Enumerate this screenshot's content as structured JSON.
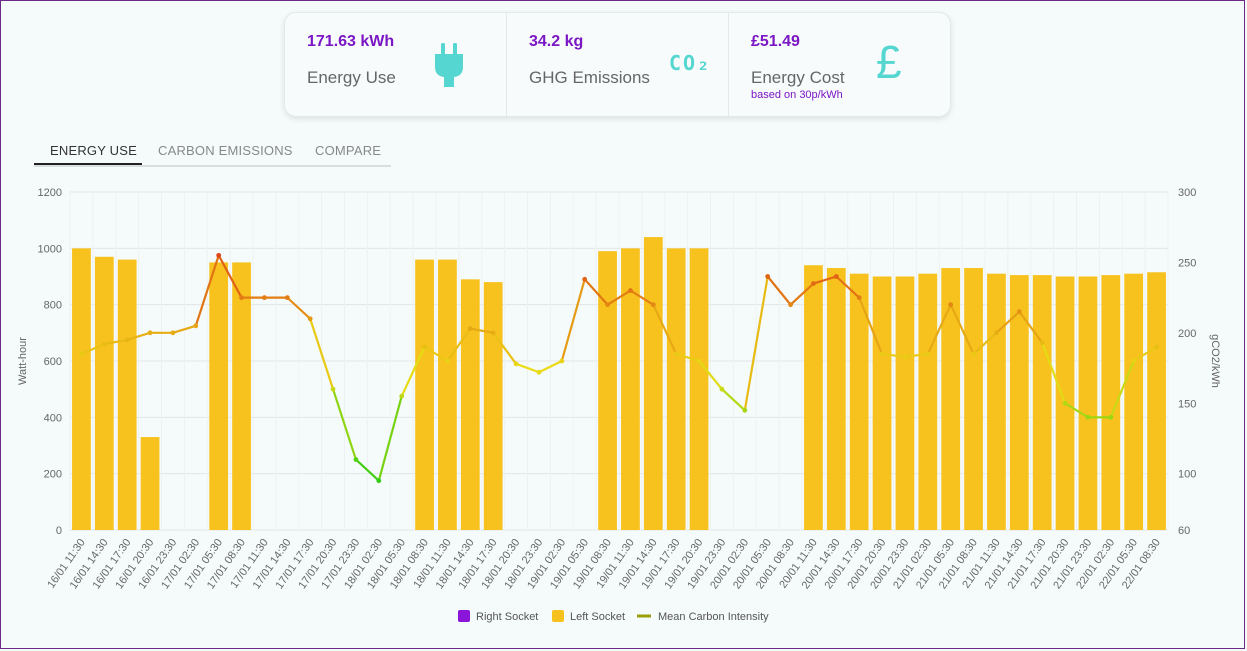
{
  "stats": {
    "energy": {
      "value": "171.63 kWh",
      "label": "Energy Use",
      "icon": "plug-icon"
    },
    "ghg": {
      "value": "34.2 kg",
      "label": "GHG Emissions",
      "icon": "co2-icon",
      "icon_text": "CO₂"
    },
    "cost": {
      "value": "£51.49",
      "label": "Energy Cost",
      "note": "based on 30p/kWh",
      "icon": "pound-icon",
      "icon_text": "£"
    }
  },
  "tabs": [
    "ENERGY USE",
    "CARBON EMISSIONS",
    "COMPARE"
  ],
  "colors": {
    "accent": "#7b16c4",
    "icon": "#56d6d0",
    "bar": "#f8c21e",
    "right_socket": "#8a14d8"
  },
  "chart_data": {
    "type": "bar",
    "ylabel": "Watt-hour",
    "y2label": "gCO2/kWh",
    "ylim": [
      0,
      1200
    ],
    "y2lim": [
      60,
      300
    ],
    "yticks": [
      0,
      200,
      400,
      600,
      800,
      1000,
      1200
    ],
    "y2ticks": [
      60,
      100,
      150,
      200,
      250,
      300
    ],
    "x": [
      "16/01 11:30",
      "16/01 14:30",
      "16/01 17:30",
      "16/01 20:30",
      "16/01 23:30",
      "17/01 02:30",
      "17/01 05:30",
      "17/01 08:30",
      "17/01 11:30",
      "17/01 14:30",
      "17/01 17:30",
      "17/01 20:30",
      "17/01 23:30",
      "18/01 02:30",
      "18/01 05:30",
      "18/01 08:30",
      "18/01 11:30",
      "18/01 14:30",
      "18/01 17:30",
      "18/01 20:30",
      "18/01 23:30",
      "19/01 02:30",
      "19/01 05:30",
      "19/01 08:30",
      "19/01 11:30",
      "19/01 14:30",
      "19/01 17:30",
      "19/01 20:30",
      "19/01 23:30",
      "20/01 02:30",
      "20/01 05:30",
      "20/01 08:30",
      "20/01 11:30",
      "20/01 14:30",
      "20/01 17:30",
      "20/01 20:30",
      "20/01 23:30",
      "21/01 02:30",
      "21/01 05:30",
      "21/01 08:30",
      "21/01 11:30",
      "21/01 14:30",
      "21/01 17:30",
      "21/01 20:30",
      "21/01 23:30",
      "22/01 02:30",
      "22/01 05:30",
      "22/01 08:30"
    ],
    "series": [
      {
        "name": "Right Socket",
        "color": "#8a14d8",
        "values": [
          0,
          0,
          0,
          0,
          0,
          0,
          0,
          0,
          0,
          0,
          0,
          0,
          0,
          0,
          0,
          0,
          0,
          0,
          0,
          0,
          0,
          0,
          0,
          0,
          0,
          0,
          0,
          0,
          0,
          0,
          0,
          0,
          0,
          0,
          0,
          0,
          0,
          0,
          0,
          0,
          0,
          0,
          0,
          0,
          0,
          0,
          0,
          0
        ]
      },
      {
        "name": "Left Socket",
        "color": "#f8c21e",
        "values": [
          1000,
          970,
          960,
          330,
          0,
          0,
          950,
          950,
          0,
          0,
          0,
          0,
          0,
          0,
          0,
          960,
          960,
          890,
          880,
          0,
          0,
          0,
          0,
          990,
          1000,
          1040,
          1000,
          1000,
          0,
          0,
          0,
          0,
          940,
          930,
          910,
          900,
          900,
          910,
          930,
          930,
          910,
          905,
          905,
          900,
          900,
          905,
          910,
          915
        ]
      },
      {
        "name": "Mean Carbon Intensity",
        "color": "#9aa00c",
        "values": [
          185,
          192,
          195,
          200,
          200,
          205,
          255,
          225,
          225,
          225,
          210,
          160,
          110,
          95,
          155,
          190,
          180,
          203,
          200,
          178,
          172,
          180,
          238,
          220,
          230,
          220,
          185,
          180,
          160,
          145,
          240,
          220,
          235,
          240,
          225,
          185,
          183,
          185,
          220,
          185,
          200,
          215,
          193,
          150,
          140,
          140,
          180,
          190
        ]
      }
    ]
  }
}
